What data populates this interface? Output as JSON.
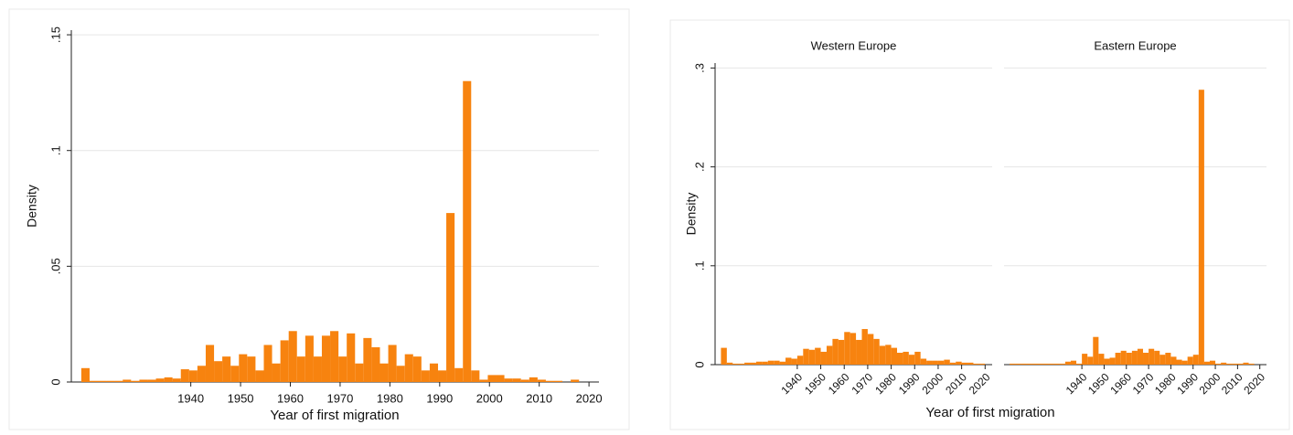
{
  "chart_data": [
    {
      "type": "histogram",
      "x_label": "Year of first migration",
      "y_label": "Density",
      "color": "#f7830f",
      "grid": true,
      "xlim": [
        1916,
        2022
      ],
      "ylim": [
        0,
        0.152
      ],
      "xticks": [
        1940,
        1950,
        1960,
        1970,
        1980,
        1990,
        2000,
        2010,
        2020
      ],
      "yticks": [
        0,
        {
          "value": 0.05,
          "label": ".05"
        },
        {
          "value": 0.1,
          "label": ".1"
        },
        {
          "value": 0.15,
          "label": ".15"
        }
      ],
      "bins": [
        1918,
        1919.67,
        1921.33,
        1923,
        1924.67,
        1926.33,
        1928,
        1929.67,
        1931.33,
        1933,
        1934.67,
        1936.33,
        1938,
        1939.67,
        1941.33,
        1943,
        1944.67,
        1946.33,
        1948,
        1949.67,
        1951.33,
        1953,
        1954.67,
        1956.33,
        1958,
        1959.67,
        1961.33,
        1963,
        1964.67,
        1966.33,
        1968,
        1969.67,
        1971.33,
        1973,
        1974.67,
        1976.33,
        1978,
        1979.67,
        1981.33,
        1983,
        1984.67,
        1986.33,
        1988,
        1989.67,
        1991.33,
        1993,
        1994.67,
        1996.33,
        1998,
        1999.67,
        2001.33,
        2003,
        2004.67,
        2006.33,
        2008,
        2009.67,
        2011.33,
        2013,
        2014.67,
        2016.33,
        2018
      ],
      "values": [
        0.006,
        0.0005,
        0.0005,
        0.0005,
        0.0005,
        0.001,
        0.0005,
        0.001,
        0.001,
        0.0015,
        0.002,
        0.0015,
        0.0055,
        0.005,
        0.007,
        0.016,
        0.009,
        0.011,
        0.007,
        0.012,
        0.011,
        0.005,
        0.016,
        0.008,
        0.018,
        0.022,
        0.011,
        0.02,
        0.011,
        0.02,
        0.022,
        0.011,
        0.021,
        0.008,
        0.019,
        0.015,
        0.008,
        0.016,
        0.007,
        0.012,
        0.011,
        0.005,
        0.008,
        0.005,
        0.073,
        0.006,
        0.13,
        0.005,
        0.001,
        0.003,
        0.003,
        0.0015,
        0.0015,
        0.001,
        0.002,
        0.001,
        0.0005,
        0.0005,
        0,
        0.001
      ]
    },
    {
      "type": "histogram",
      "title": "Western Europe",
      "x_label": "Year of first migration",
      "y_label": "Density",
      "color": "#f7830f",
      "grid": true,
      "xlim": [
        1905,
        2023
      ],
      "ylim": [
        0,
        0.305
      ],
      "xticks": [
        1940,
        1950,
        1960,
        1970,
        1980,
        1990,
        2000,
        2010,
        2020
      ],
      "yticks": [
        0,
        {
          "value": 0.1,
          "label": ".1"
        },
        {
          "value": 0.2,
          "label": ".2"
        },
        {
          "value": 0.3,
          "label": ".3"
        }
      ],
      "bins": [
        1907.5,
        1910,
        1912.5,
        1915,
        1917.5,
        1920,
        1922.5,
        1925,
        1927.5,
        1930,
        1932.5,
        1935,
        1937.5,
        1940,
        1942.5,
        1945,
        1947.5,
        1950,
        1952.5,
        1955,
        1957.5,
        1960,
        1962.5,
        1965,
        1967.5,
        1970,
        1972.5,
        1975,
        1977.5,
        1980,
        1982.5,
        1985,
        1987.5,
        1990,
        1992.5,
        1995,
        1997.5,
        2000,
        2002.5,
        2005,
        2007.5,
        2010,
        2012.5,
        2015,
        2017.5,
        2020
      ],
      "values": [
        0.017,
        0.002,
        0.001,
        0.001,
        0.002,
        0.002,
        0.003,
        0.003,
        0.004,
        0.004,
        0.003,
        0.007,
        0.006,
        0.009,
        0.016,
        0.015,
        0.017,
        0.013,
        0.019,
        0.026,
        0.025,
        0.033,
        0.032,
        0.025,
        0.036,
        0.031,
        0.026,
        0.019,
        0.02,
        0.017,
        0.012,
        0.013,
        0.01,
        0.013,
        0.006,
        0.004,
        0.004,
        0.004,
        0.005,
        0.002,
        0.003,
        0.002,
        0.002,
        0.001,
        0.001
      ]
    },
    {
      "type": "histogram",
      "title": "Eastern Europe",
      "color": "#f7830f",
      "grid": true,
      "xlim": [
        1905,
        2023
      ],
      "ylim": [
        0,
        0.305
      ],
      "xticks": [
        1940,
        1950,
        1960,
        1970,
        1980,
        1990,
        2000,
        2010,
        2020
      ],
      "bins": [
        1907.5,
        1910,
        1912.5,
        1915,
        1917.5,
        1920,
        1922.5,
        1925,
        1927.5,
        1930,
        1932.5,
        1935,
        1937.5,
        1940,
        1942.5,
        1945,
        1947.5,
        1950,
        1952.5,
        1955,
        1957.5,
        1960,
        1962.5,
        1965,
        1967.5,
        1970,
        1972.5,
        1975,
        1977.5,
        1980,
        1982.5,
        1985,
        1987.5,
        1990,
        1992.5,
        1995,
        1997.5,
        2000,
        2002.5,
        2005,
        2007.5,
        2010,
        2012.5,
        2015,
        2017.5,
        2020
      ],
      "values": [
        0.001,
        0.001,
        0.001,
        0.001,
        0.001,
        0.001,
        0.001,
        0.001,
        0.001,
        0.001,
        0.003,
        0.004,
        0.001,
        0.011,
        0.008,
        0.028,
        0.011,
        0.006,
        0.007,
        0.012,
        0.014,
        0.012,
        0.014,
        0.016,
        0.012,
        0.016,
        0.014,
        0.01,
        0.012,
        0.008,
        0.005,
        0.004,
        0.008,
        0.01,
        0.278,
        0.003,
        0.004,
        0.001,
        0.002,
        0.001,
        0.001,
        0.001,
        0.002,
        0.001,
        0
      ]
    }
  ]
}
